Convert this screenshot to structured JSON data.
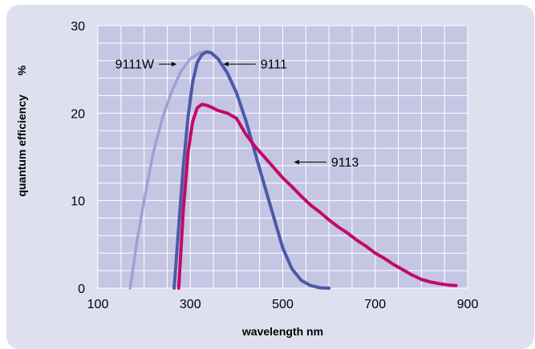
{
  "colors": {
    "panel_background": "#dfe0ef",
    "plot_background": "#c5c6e3",
    "grid": "#ffffff",
    "series_9111W": "#9aa3d3",
    "series_9111": "#4b5aa8",
    "series_9113": "#c4086a"
  },
  "chart_data": {
    "type": "line",
    "title": "",
    "xlabel": "wavelength  nm",
    "ylabel": "quantum efficiency",
    "ylabel_unit": "%",
    "xlim": [
      100,
      900
    ],
    "ylim": [
      0,
      30
    ],
    "xticks": [
      100,
      300,
      500,
      700,
      900
    ],
    "yticks": [
      0,
      10,
      20,
      30
    ],
    "grid": true,
    "series": [
      {
        "name": "9111W",
        "x": [
          170,
          185,
          200,
          220,
          240,
          260,
          280,
          300,
          320,
          335,
          345,
          360,
          380,
          400,
          420,
          440,
          460,
          480,
          500,
          520,
          540,
          560,
          580,
          600
        ],
        "y": [
          0,
          5.5,
          10.0,
          15.5,
          19.5,
          22.5,
          24.8,
          26.2,
          26.9,
          27.0,
          26.9,
          26.2,
          24.6,
          22.3,
          19.2,
          15.5,
          11.8,
          8.2,
          4.6,
          2.2,
          0.9,
          0.3,
          0.05,
          0
        ]
      },
      {
        "name": "9111",
        "x": [
          265,
          275,
          285,
          295,
          305,
          315,
          325,
          335,
          345,
          360,
          380,
          400,
          420,
          440,
          460,
          480,
          500,
          520,
          540,
          560,
          580,
          600
        ],
        "y": [
          0,
          7.0,
          14.0,
          19.5,
          23.5,
          25.8,
          26.7,
          27.0,
          26.9,
          26.2,
          24.6,
          22.3,
          19.2,
          15.5,
          11.8,
          8.2,
          4.6,
          2.2,
          0.9,
          0.3,
          0.05,
          0
        ]
      },
      {
        "name": "9113",
        "x": [
          275,
          285,
          295,
          305,
          315,
          325,
          335,
          345,
          360,
          380,
          400,
          420,
          440,
          460,
          480,
          500,
          520,
          540,
          560,
          580,
          600,
          620,
          640,
          660,
          680,
          700,
          720,
          740,
          760,
          780,
          800,
          820,
          840,
          860,
          875
        ],
        "y": [
          0,
          9.0,
          15.5,
          19.0,
          20.6,
          21.0,
          20.9,
          20.7,
          20.3,
          20.0,
          19.4,
          17.6,
          16.2,
          15.0,
          13.8,
          12.6,
          11.6,
          10.5,
          9.5,
          8.7,
          7.8,
          7.0,
          6.3,
          5.5,
          4.8,
          4.0,
          3.4,
          2.7,
          2.1,
          1.5,
          1.0,
          0.7,
          0.5,
          0.35,
          0.3
        ]
      }
    ],
    "annotations": [
      {
        "text": "9111W",
        "series": "9111W",
        "label_side": "left",
        "arrow_x": 270,
        "arrow_y": 25.6
      },
      {
        "text": "9111",
        "series": "9111",
        "label_side": "right",
        "arrow_x": 372,
        "arrow_y": 25.6
      },
      {
        "text": "9113",
        "series": "9113",
        "label_side": "right",
        "arrow_x": 525,
        "arrow_y": 14.4
      }
    ]
  }
}
